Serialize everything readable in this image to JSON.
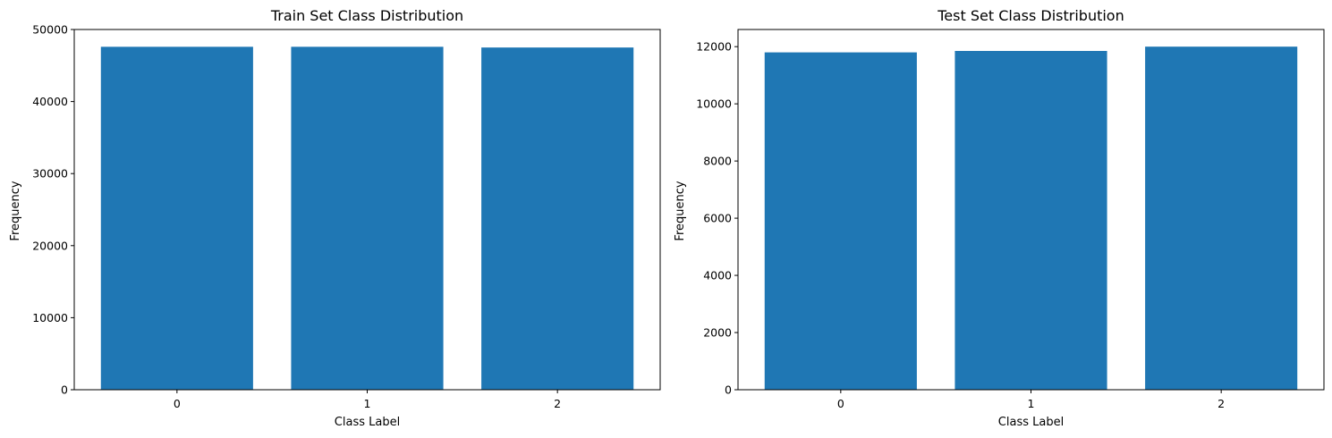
{
  "chart_data": [
    {
      "type": "bar",
      "title": "Train Set Class Distribution",
      "xlabel": "Class Label",
      "ylabel": "Frequency",
      "categories": [
        "0",
        "1",
        "2"
      ],
      "values": [
        47600,
        47600,
        47500
      ],
      "ylim": [
        0,
        50000
      ],
      "yticks": [
        0,
        10000,
        20000,
        30000,
        40000,
        50000
      ],
      "grid": false,
      "bar_color": "#1f77b4"
    },
    {
      "type": "bar",
      "title": "Test Set Class Distribution",
      "xlabel": "Class Label",
      "ylabel": "Frequency",
      "categories": [
        "0",
        "1",
        "2"
      ],
      "values": [
        11800,
        11850,
        12000
      ],
      "ylim": [
        0,
        12600
      ],
      "yticks": [
        0,
        2000,
        4000,
        6000,
        8000,
        10000,
        12000
      ],
      "grid": false,
      "bar_color": "#1f77b4"
    }
  ]
}
